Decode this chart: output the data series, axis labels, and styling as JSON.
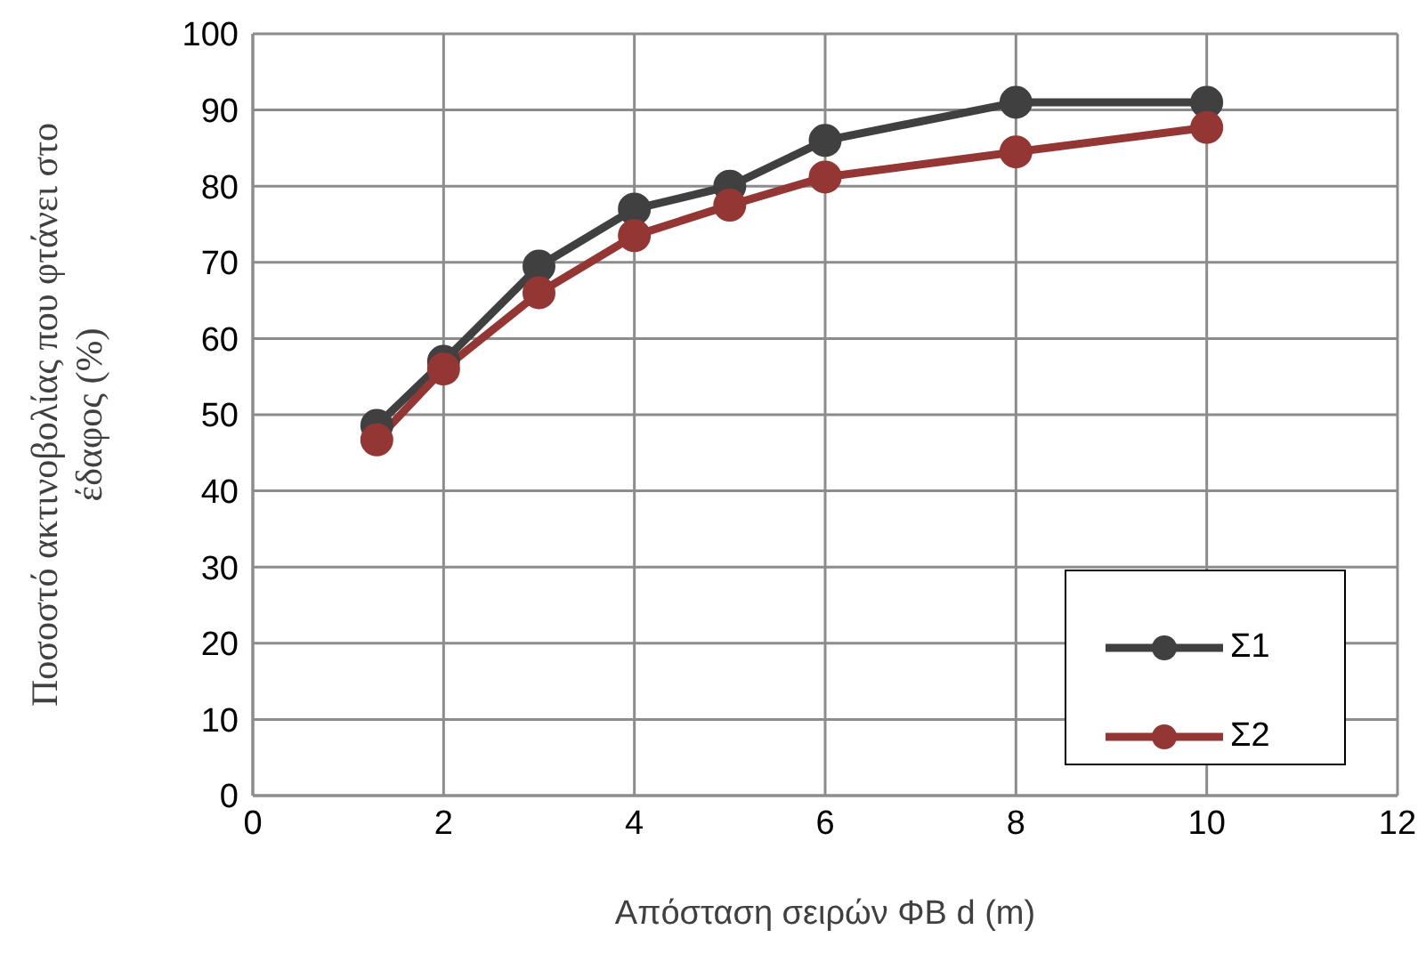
{
  "chart_data": {
    "type": "line",
    "xlabel": "Απόσταση σειρών ΦΒ d (m)",
    "ylabel": "Ποσοστό ακτινοβολίας που φτάνει στο έδαφος (%)",
    "x": [
      1.3,
      2,
      3,
      4,
      5,
      6,
      8,
      10
    ],
    "series": [
      {
        "name": "Σ1",
        "color": "#404040",
        "values": [
          48.6,
          57,
          69.5,
          77,
          80,
          86,
          91,
          91
        ]
      },
      {
        "name": "Σ2",
        "color": "#943634",
        "values": [
          46.7,
          56,
          66,
          73.5,
          77.5,
          81.2,
          84.5,
          87.7
        ]
      }
    ],
    "xlim": [
      0,
      12
    ],
    "xticks": [
      0,
      2,
      4,
      6,
      8,
      10,
      12
    ],
    "ylim": [
      0,
      100
    ],
    "yticks": [
      0,
      10,
      20,
      30,
      40,
      50,
      60,
      70,
      80,
      90,
      100
    ],
    "grid": true,
    "legend": "bottom right",
    "marker": "circle",
    "line_style": "solid"
  }
}
